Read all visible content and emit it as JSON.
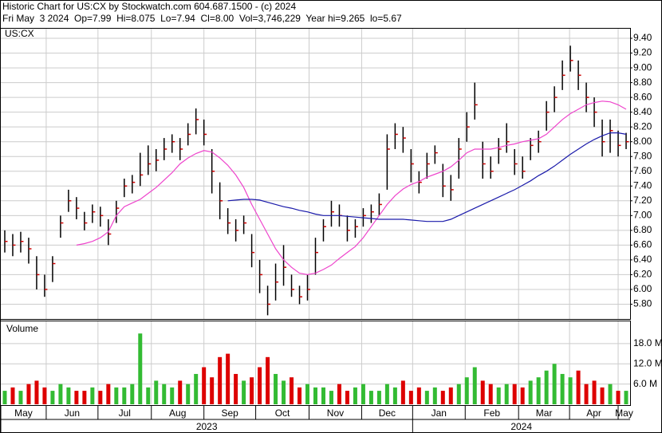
{
  "chart_data": {
    "type": "ohlc",
    "title": "Historic Chart for US:CX by Stockwatch.com 604.687.1500 - (c) 2024",
    "subtitle": "Fri May  3 2024  Op=7.99  Hi=8.075  Lo=7.94  Cl=8.00  Vol=3,746,229  Year hi=9.265  lo=5.67",
    "symbol": "US:CX",
    "volume_label": "Volume",
    "bar_color": "#000000",
    "close_color": "#cc0000",
    "up_color": "#33bb33",
    "down_color": "#dd0000",
    "xlim": [
      -0.5,
      78.5
    ],
    "xticks": [
      {
        "value": -0.5,
        "label": "May"
      },
      {
        "value": 5.2,
        "label": "Jun"
      },
      {
        "value": 11.7,
        "label": "Jul"
      },
      {
        "value": 18.4,
        "label": "Aug"
      },
      {
        "value": 25,
        "label": "Sep"
      },
      {
        "value": 31.5,
        "label": "Oct"
      },
      {
        "value": 38.2,
        "label": "Nov"
      },
      {
        "value": 44.8,
        "label": "Dec"
      },
      {
        "value": 51.2,
        "label": "Jan"
      },
      {
        "value": 57.8,
        "label": "Feb"
      },
      {
        "value": 64.5,
        "label": "Mar"
      },
      {
        "value": 70.9,
        "label": "Apr"
      },
      {
        "value": 77,
        "label": "May"
      }
    ],
    "years": [
      {
        "value": -0.5,
        "label": "2023"
      },
      {
        "value": 51.2,
        "label": "2024"
      }
    ],
    "ylim": [
      5.6,
      9.53
    ],
    "yticks": [
      {
        "value": 5.8,
        "label": "5.80"
      },
      {
        "value": 6.0,
        "label": "6.00"
      },
      {
        "value": 6.2,
        "label": "6.20"
      },
      {
        "value": 6.4,
        "label": "6.40"
      },
      {
        "value": 6.6,
        "label": "6.60"
      },
      {
        "value": 6.8,
        "label": "6.80"
      },
      {
        "value": 7.0,
        "label": "7.00"
      },
      {
        "value": 7.2,
        "label": "7.20"
      },
      {
        "value": 7.4,
        "label": "7.40"
      },
      {
        "value": 7.6,
        "label": "7.60"
      },
      {
        "value": 7.8,
        "label": "7.80"
      },
      {
        "value": 8.0,
        "label": "8.00"
      },
      {
        "value": 8.2,
        "label": "8.20"
      },
      {
        "value": 8.4,
        "label": "8.40"
      },
      {
        "value": 8.6,
        "label": "8.60"
      },
      {
        "value": 8.8,
        "label": "8.80"
      },
      {
        "value": 9.0,
        "label": "9.00"
      },
      {
        "value": 9.2,
        "label": "9.20"
      },
      {
        "value": 9.4,
        "label": "9.40"
      }
    ],
    "vlim": [
      0,
      24.6
    ],
    "vticks": [
      {
        "value": 6,
        "label": "6.0 M"
      },
      {
        "value": 12,
        "label": "12.0 M"
      },
      {
        "value": 18,
        "label": "18.0 M"
      }
    ],
    "grid": true,
    "close": [
      6.65,
      6.6,
      6.65,
      6.55,
      6.2,
      6.0,
      6.35,
      6.9,
      7.2,
      7.1,
      6.9,
      7.05,
      7.0,
      6.75,
      7.1,
      7.4,
      7.45,
      7.55,
      7.7,
      7.75,
      7.9,
      8.0,
      7.9,
      8.1,
      8.3,
      8.1,
      7.6,
      7.2,
      6.9,
      6.8,
      6.9,
      6.5,
      6.2,
      5.8,
      6.1,
      6.3,
      6.0,
      5.9,
      6.0,
      6.5,
      6.85,
      7.05,
      7.0,
      6.8,
      6.85,
      7.0,
      7.05,
      7.15,
      7.9,
      8.1,
      8.05,
      7.7,
      7.45,
      7.7,
      7.85,
      7.4,
      7.35,
      7.9,
      8.2,
      8.5,
      7.7,
      7.6,
      7.9,
      8.0,
      7.7,
      7.6,
      7.95,
      8.0,
      8.4,
      8.6,
      8.9,
      9.1,
      8.9,
      8.6,
      8.4,
      8.0,
      8.15,
      7.95,
      8.0
    ],
    "high": [
      6.8,
      6.75,
      6.78,
      6.7,
      6.45,
      6.2,
      6.45,
      7.0,
      7.35,
      7.25,
      7.05,
      7.15,
      7.12,
      6.95,
      7.2,
      7.5,
      7.55,
      7.85,
      7.95,
      7.9,
      8.05,
      8.1,
      8.05,
      8.25,
      8.45,
      8.3,
      7.9,
      7.45,
      7.1,
      6.95,
      7.0,
      6.75,
      6.4,
      6.05,
      6.35,
      6.6,
      6.2,
      6.05,
      6.2,
      6.7,
      6.95,
      7.2,
      7.15,
      7.0,
      6.95,
      7.1,
      7.15,
      7.3,
      8.1,
      8.25,
      8.2,
      7.9,
      7.6,
      7.85,
      7.95,
      7.7,
      7.55,
      8.05,
      8.4,
      8.8,
      8.0,
      7.8,
      8.05,
      8.25,
      7.9,
      7.8,
      8.05,
      8.15,
      8.55,
      8.75,
      9.1,
      9.3,
      9.1,
      8.8,
      8.6,
      8.3,
      8.3,
      8.15,
      8.12
    ],
    "low": [
      6.5,
      6.45,
      6.5,
      6.35,
      6.0,
      5.9,
      6.1,
      6.7,
      7.05,
      6.95,
      6.8,
      6.9,
      6.85,
      6.6,
      6.9,
      7.25,
      7.3,
      7.4,
      7.55,
      7.6,
      7.75,
      7.85,
      7.75,
      7.95,
      8.1,
      7.95,
      7.3,
      6.95,
      6.75,
      6.65,
      6.75,
      6.3,
      5.95,
      5.65,
      5.85,
      6.05,
      5.9,
      5.8,
      5.85,
      6.2,
      6.65,
      6.85,
      6.85,
      6.65,
      6.7,
      6.85,
      6.9,
      7.0,
      7.35,
      7.9,
      7.85,
      7.45,
      7.3,
      7.5,
      7.7,
      7.25,
      7.2,
      7.5,
      8.0,
      8.3,
      7.5,
      7.5,
      7.7,
      7.85,
      7.55,
      7.5,
      7.75,
      7.85,
      8.15,
      8.4,
      8.7,
      8.95,
      8.7,
      8.4,
      8.2,
      7.8,
      7.85,
      7.8,
      7.9
    ],
    "volume": [
      4,
      5,
      4,
      6,
      7,
      5,
      4,
      6,
      5,
      4,
      4,
      5,
      4,
      6,
      5,
      5,
      6,
      21,
      5,
      7,
      6,
      5,
      7,
      6,
      9,
      11,
      8,
      14,
      15,
      9,
      7,
      8,
      11,
      14,
      9,
      7,
      8,
      5,
      6,
      5,
      5,
      4,
      6,
      4,
      5,
      6,
      4,
      4,
      6,
      5,
      7,
      4,
      5,
      4,
      5,
      4,
      5,
      6,
      8,
      11,
      7,
      6,
      5,
      6,
      6,
      5,
      7,
      8,
      10,
      12,
      9,
      8,
      10,
      6,
      7,
      5,
      6,
      4,
      4
    ],
    "series": [
      {
        "color": "#ee44cc",
        "values": [
          null,
          null,
          null,
          null,
          null,
          null,
          null,
          null,
          null,
          6.6,
          6.62,
          6.65,
          6.7,
          6.78,
          7.0,
          7.12,
          7.17,
          7.22,
          7.3,
          7.38,
          7.48,
          7.58,
          7.7,
          7.78,
          7.84,
          7.88,
          7.86,
          7.78,
          7.68,
          7.55,
          7.38,
          7.15,
          6.95,
          6.75,
          6.55,
          6.4,
          6.3,
          6.22,
          6.2,
          6.22,
          6.27,
          6.33,
          6.42,
          6.5,
          6.58,
          6.7,
          6.85,
          7.0,
          7.15,
          7.27,
          7.36,
          7.42,
          7.46,
          7.52,
          7.56,
          7.6,
          7.66,
          7.75,
          7.85,
          7.9,
          7.9,
          7.9,
          7.92,
          7.95,
          7.97,
          8.0,
          8.02,
          8.04,
          8.1,
          8.2,
          8.3,
          8.38,
          8.44,
          8.5,
          8.53,
          8.55,
          8.54,
          8.5,
          8.44
        ]
      },
      {
        "color": "#1a1aaa",
        "values": [
          null,
          null,
          null,
          null,
          null,
          null,
          null,
          null,
          null,
          null,
          null,
          null,
          null,
          null,
          null,
          null,
          null,
          null,
          null,
          null,
          null,
          null,
          null,
          null,
          null,
          null,
          null,
          null,
          7.2,
          7.21,
          7.22,
          7.22,
          7.21,
          7.18,
          7.15,
          7.12,
          7.1,
          7.07,
          7.05,
          7.02,
          7.0,
          7.0,
          7.0,
          6.99,
          6.98,
          6.97,
          6.96,
          6.95,
          6.95,
          6.95,
          6.95,
          6.94,
          6.93,
          6.92,
          6.92,
          6.92,
          6.95,
          7.0,
          7.05,
          7.1,
          7.15,
          7.2,
          7.25,
          7.3,
          7.35,
          7.41,
          7.47,
          7.54,
          7.6,
          7.67,
          7.75,
          7.83,
          7.9,
          7.97,
          8.03,
          8.08,
          8.12,
          8.12,
          8.1
        ]
      }
    ]
  }
}
